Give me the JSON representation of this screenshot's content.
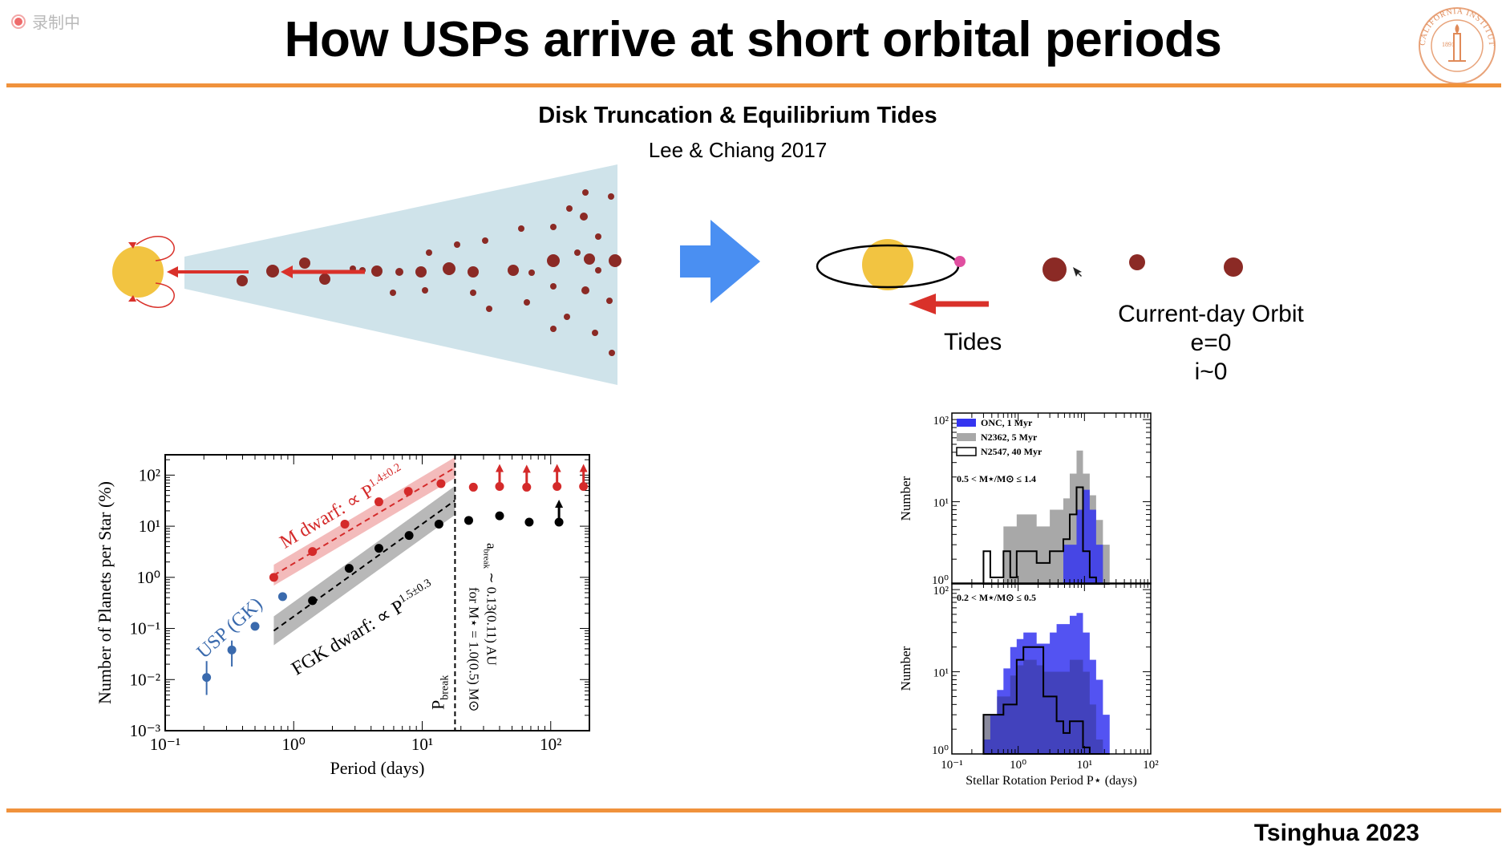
{
  "recording_indicator": "录制中",
  "slide": {
    "title": "How USPs arrive at short orbital periods",
    "subtitle": "Disk Truncation & Equilibrium Tides",
    "reference": "Lee & Chiang 2017",
    "footer": "Tsinghua 2023",
    "logo_text": "CALIFORNIA INSTITUTE OF TECHNOLOGY",
    "logo_year": "1891"
  },
  "diagram": {
    "tides_label": "Tides",
    "orbit_title": "Current-day Orbit",
    "orbit_e": "e=0",
    "orbit_i": "i~0"
  },
  "colors": {
    "accent_rule": "#f0923c",
    "star": "#f2c441",
    "planet": "#8b2a25",
    "disk": "#cfe3ea",
    "arrow_blue": "#4a8ff2",
    "arrow_red": "#d9312a",
    "m_dwarf": "#d42a2a",
    "fgk": "#000000",
    "usp": "#3a6aad",
    "onc": "#3535f0",
    "n2362": "#a8a8a8"
  },
  "chart_data": [
    {
      "type": "scatter",
      "scale": "log-log",
      "xlabel": "Period (days)",
      "ylabel": "Number of Planets per Star (%)",
      "xlim": [
        0.1,
        200
      ],
      "ylim": [
        0.001,
        250
      ],
      "x_ticks": [
        "10⁻¹",
        "10⁰",
        "10¹",
        "10²"
      ],
      "y_ticks": [
        "10⁻³",
        "10⁻²",
        "10⁻¹",
        "10⁰",
        "10¹",
        "10²"
      ],
      "series": [
        {
          "name": "USP (GK)",
          "x": [
            0.21,
            0.33,
            0.5,
            0.82
          ],
          "y": [
            0.011,
            0.038,
            0.11,
            0.42
          ],
          "y_err_low": [
            0.006,
            0.02,
            0,
            0
          ],
          "y_err_high": [
            0.012,
            0.02,
            0,
            0
          ]
        },
        {
          "name": "M dwarf",
          "fit": "∝ P^1.4±0.2",
          "x": [
            0.7,
            1.4,
            2.5,
            4.6,
            7.8,
            14,
            25,
            40,
            65,
            112,
            180
          ],
          "y": [
            1.0,
            3.2,
            11,
            30,
            48,
            68,
            58,
            60,
            58,
            60,
            60
          ],
          "lower_limit": [
            false,
            false,
            false,
            false,
            false,
            false,
            false,
            true,
            true,
            true,
            true
          ]
        },
        {
          "name": "FGK dwarf",
          "fit": "∝ P^1.5±0.3",
          "x": [
            1.4,
            2.7,
            4.6,
            7.9,
            13.5,
            23,
            40,
            68,
            116
          ],
          "y": [
            0.35,
            1.5,
            3.7,
            6.6,
            11,
            13,
            16,
            12,
            12
          ],
          "lower_limit": [
            false,
            false,
            false,
            false,
            false,
            false,
            false,
            false,
            true
          ]
        }
      ],
      "annotations": {
        "usp_label": "USP (GK)",
        "m_dwarf_label": "M dwarf: ∝ P",
        "m_dwarf_exp": "1.4±0.2",
        "fgk_label": "FGK dwarf: ∝ P",
        "fgk_exp": "1.5±0.3",
        "pbreak": "P",
        "pbreak_sub": "break",
        "abreak_line1": "a",
        "abreak_sub": "break",
        "abreak_rest": " ∼ 0.13(0.11) AU",
        "abreak_line2": "for M⋆ = 1.0(0.5) M⊙",
        "pbreak_x": 18
      }
    },
    {
      "type": "histogram",
      "scale": "log-log",
      "xlabel": "Stellar Rotation Period P⋆ (days)",
      "ylabel": "Number",
      "xlim": [
        0.1,
        100
      ],
      "ylim": [
        1,
        120
      ],
      "x_ticks": [
        "10⁻¹",
        "10⁰",
        "10¹",
        "10²"
      ],
      "y_ticks": [
        "10⁰",
        "10¹",
        "10²"
      ],
      "legend": [
        "ONC, 1 Myr",
        "N2362, 5 Myr",
        "N2547, 40 Myr"
      ],
      "bin_edges": [
        0.3,
        0.38,
        0.48,
        0.6,
        0.76,
        0.95,
        1.2,
        1.5,
        1.9,
        2.4,
        3.0,
        3.8,
        4.8,
        6.0,
        7.6,
        9.5,
        12,
        15,
        19,
        24
      ],
      "panels": [
        {
          "label": "0.5 < M⋆/M⊙ ≤ 1.4",
          "ONC, 1 Myr": [
            0,
            0,
            0,
            0,
            0,
            0,
            0,
            0,
            0,
            0,
            0,
            0,
            3,
            3,
            8,
            14,
            8,
            3,
            0
          ],
          "N2362, 5 Myr": [
            0,
            0,
            0,
            5,
            5,
            7,
            7,
            7,
            5,
            5,
            8,
            8,
            11,
            22,
            42,
            22,
            12,
            6,
            3
          ],
          "N2547, 40 Myr": [
            2.5,
            1.2,
            1.2,
            2.5,
            1.2,
            2.5,
            2.5,
            2.5,
            1.8,
            1.8,
            2.5,
            2.5,
            3.5,
            7,
            15,
            2.5,
            1.2,
            0,
            0
          ]
        },
        {
          "label": "0.2 < M⋆/M⊙ ≤ 0.5",
          "ONC, 1 Myr": [
            1.5,
            3,
            6,
            11,
            20,
            25,
            30,
            30,
            22,
            22,
            30,
            38,
            38,
            48,
            52,
            30,
            14,
            8,
            3
          ],
          "N2362, 5 Myr": [
            3,
            3,
            5,
            5,
            9,
            12,
            14,
            14,
            12,
            10,
            10,
            10,
            10,
            14,
            14,
            10,
            4,
            1.5,
            0
          ],
          "N2547, 40 Myr": [
            3,
            3,
            3,
            4,
            4,
            14,
            20,
            20,
            20,
            5,
            5,
            2.5,
            1.8,
            2.5,
            2.5,
            1.2,
            0,
            0,
            0
          ]
        }
      ]
    }
  ]
}
